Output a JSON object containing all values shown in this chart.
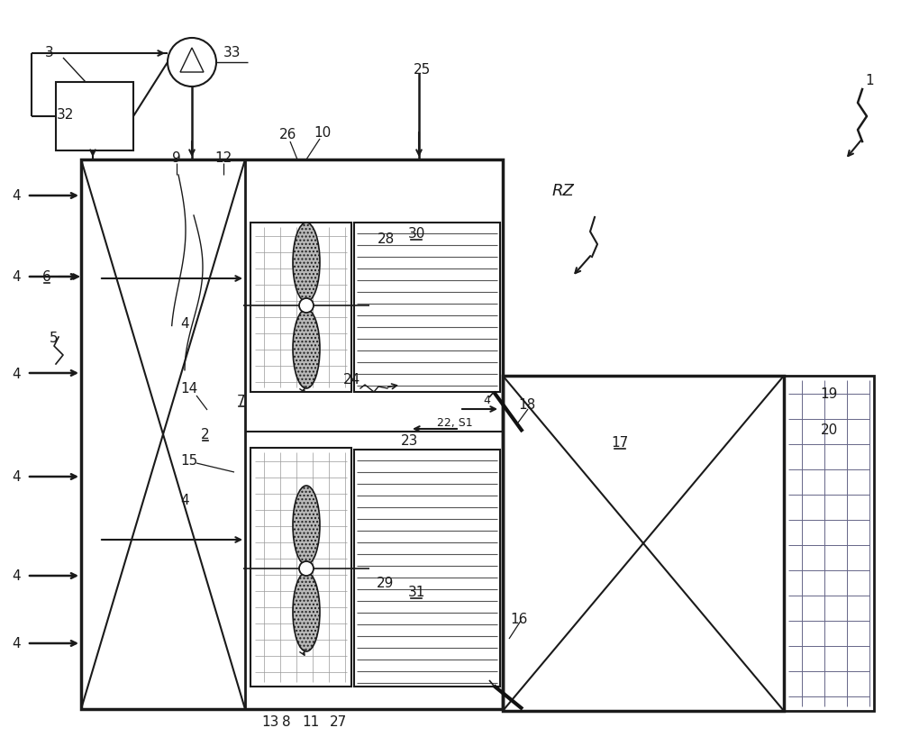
{
  "bg_color": "#ffffff",
  "line_color": "#1a1a1a",
  "gray_color": "#888888",
  "light_gray": "#cccccc",
  "hatching_color": "#aaaaaa",
  "title": "",
  "fontsize": 11,
  "lw_main": 2.5,
  "lw_inner": 1.5,
  "lw_thin": 0.8
}
